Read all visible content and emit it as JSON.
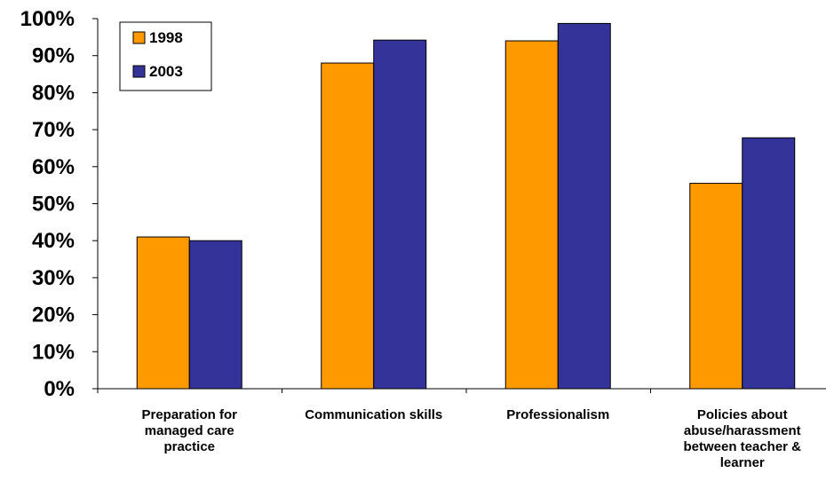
{
  "chart_data": {
    "type": "bar",
    "categories": [
      [
        "Preparation for",
        "managed care",
        "practice"
      ],
      [
        "Communication skills"
      ],
      [
        "Professionalism"
      ],
      [
        "Policies about",
        "abuse/harassment",
        "between teacher &",
        "learner"
      ]
    ],
    "series": [
      {
        "name": "1998",
        "color": "#FF9900",
        "values": [
          41,
          88,
          94,
          55.5
        ]
      },
      {
        "name": "2003",
        "color": "#333399",
        "values": [
          40,
          94.2,
          98.7,
          67.8
        ]
      }
    ],
    "ylim": [
      0,
      100
    ],
    "yticks": [
      "0%",
      "10%",
      "20%",
      "30%",
      "40%",
      "50%",
      "60%",
      "70%",
      "80%",
      "90%",
      "100%"
    ],
    "title": "",
    "xlabel": "",
    "ylabel": "",
    "grid": false,
    "legend_position": "top-left"
  }
}
